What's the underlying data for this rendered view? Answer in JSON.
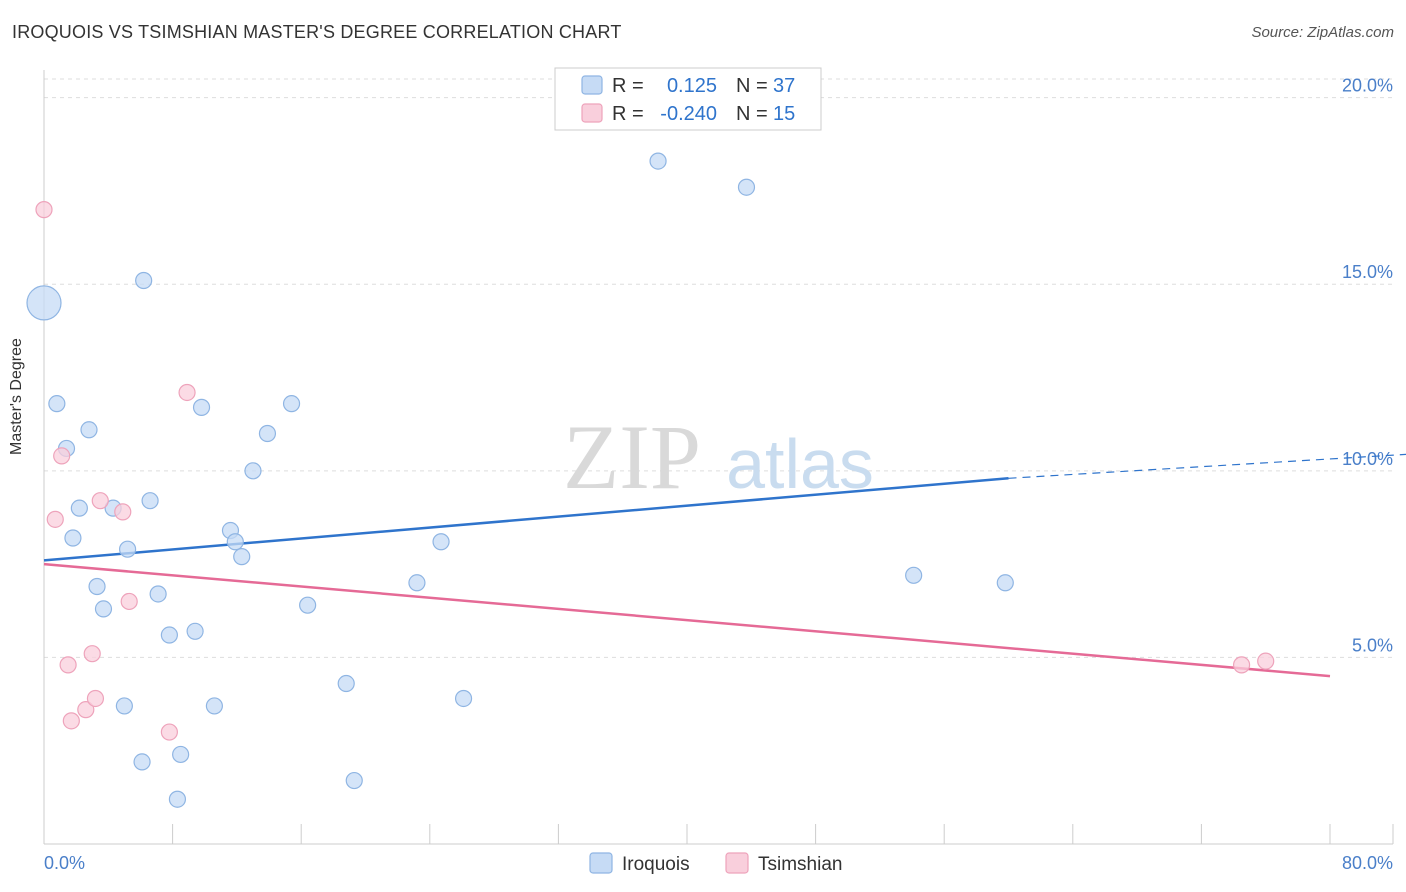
{
  "colors": {
    "iroquois_fill": "#c6dbf5",
    "iroquois_stroke": "#8fb5e3",
    "iroquois_line": "#2f74cc",
    "tsimshian_fill": "#f9cfdc",
    "tsimshian_stroke": "#eea3bb",
    "tsimshian_line": "#e56a96",
    "axis_text": "#4a7fc9",
    "grid": "#dddddd"
  },
  "chart_data": {
    "type": "scatter",
    "title": "IROQUOIS VS TSIMSHIAN MASTER'S DEGREE CORRELATION CHART",
    "source": "Source: ZipAtlas.com",
    "xlabel": "",
    "ylabel": "Master's Degree",
    "xlim": [
      0,
      80
    ],
    "ylim": [
      0,
      20.5
    ],
    "x_tick_labels": [
      "0.0%",
      "80.0%"
    ],
    "y_ticks": [
      5,
      10,
      15,
      20
    ],
    "y_tick_labels": [
      "5.0%",
      "10.0%",
      "15.0%",
      "20.0%"
    ],
    "watermark": {
      "part1": "ZIP",
      "part2": "atlas"
    },
    "legend": {
      "rows": [
        {
          "r_label": "R =",
          "r_value": "0.125",
          "n_label": "N =",
          "n_value": "37"
        },
        {
          "r_label": "R =",
          "r_value": "-0.240",
          "n_label": "N =",
          "n_value": "15"
        }
      ]
    },
    "series": [
      {
        "name": "Iroquois",
        "color": "#c6dbf5",
        "stroke": "#8fb5e3",
        "r": 0.125,
        "n": 37,
        "trend": {
          "x0": 0,
          "y0": 7.6,
          "x1": 60,
          "y1": 9.8,
          "dash_x1": 87,
          "dash_y1": 10.5
        },
        "points": [
          {
            "x": 0.0,
            "y": 14.5,
            "big": true
          },
          {
            "x": 0.8,
            "y": 11.8
          },
          {
            "x": 1.4,
            "y": 10.6
          },
          {
            "x": 1.8,
            "y": 8.2
          },
          {
            "x": 2.2,
            "y": 9.0
          },
          {
            "x": 2.8,
            "y": 11.1
          },
          {
            "x": 3.3,
            "y": 6.9
          },
          {
            "x": 3.7,
            "y": 6.3
          },
          {
            "x": 4.3,
            "y": 9.0
          },
          {
            "x": 5.0,
            "y": 3.7
          },
          {
            "x": 5.2,
            "y": 7.9
          },
          {
            "x": 6.1,
            "y": 2.2
          },
          {
            "x": 6.2,
            "y": 15.1
          },
          {
            "x": 6.6,
            "y": 9.2
          },
          {
            "x": 7.1,
            "y": 6.7
          },
          {
            "x": 7.8,
            "y": 5.6
          },
          {
            "x": 8.3,
            "y": 1.2
          },
          {
            "x": 8.5,
            "y": 2.4
          },
          {
            "x": 9.4,
            "y": 5.7
          },
          {
            "x": 9.8,
            "y": 11.7
          },
          {
            "x": 10.6,
            "y": 3.7
          },
          {
            "x": 11.6,
            "y": 8.4
          },
          {
            "x": 11.9,
            "y": 8.1
          },
          {
            "x": 12.3,
            "y": 7.7
          },
          {
            "x": 13.0,
            "y": 10.0
          },
          {
            "x": 13.9,
            "y": 11.0
          },
          {
            "x": 15.4,
            "y": 11.8
          },
          {
            "x": 16.4,
            "y": 6.4
          },
          {
            "x": 18.8,
            "y": 4.3
          },
          {
            "x": 19.3,
            "y": 1.7
          },
          {
            "x": 23.2,
            "y": 7.0
          },
          {
            "x": 24.7,
            "y": 8.1
          },
          {
            "x": 26.1,
            "y": 3.9
          },
          {
            "x": 38.2,
            "y": 18.3
          },
          {
            "x": 43.7,
            "y": 17.6
          },
          {
            "x": 54.1,
            "y": 7.2
          },
          {
            "x": 59.8,
            "y": 7.0
          }
        ]
      },
      {
        "name": "Tsimshian",
        "color": "#f9cfdc",
        "stroke": "#eea3bb",
        "r": -0.24,
        "n": 15,
        "trend": {
          "x0": 0,
          "y0": 7.5,
          "x1": 80,
          "y1": 4.5
        },
        "points": [
          {
            "x": 0.0,
            "y": 17.0
          },
          {
            "x": 0.7,
            "y": 8.7
          },
          {
            "x": 1.1,
            "y": 10.4
          },
          {
            "x": 1.5,
            "y": 4.8
          },
          {
            "x": 1.7,
            "y": 3.3
          },
          {
            "x": 2.6,
            "y": 3.6
          },
          {
            "x": 3.0,
            "y": 5.1
          },
          {
            "x": 3.2,
            "y": 3.9
          },
          {
            "x": 3.5,
            "y": 9.2
          },
          {
            "x": 4.9,
            "y": 8.9
          },
          {
            "x": 5.3,
            "y": 6.5
          },
          {
            "x": 7.8,
            "y": 3.0
          },
          {
            "x": 8.9,
            "y": 12.1
          },
          {
            "x": 74.5,
            "y": 4.8
          },
          {
            "x": 76.0,
            "y": 4.9
          }
        ]
      }
    ]
  }
}
